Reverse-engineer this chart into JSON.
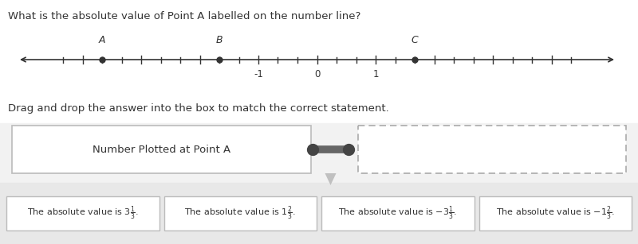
{
  "title_text": "What is the absolute value of Point A labelled on the number line?",
  "drag_text": "Drag and drop the answer into the box to match the correct statement.",
  "number_line": {
    "x_min": -4.5,
    "x_max": 4.5,
    "ticks_per_unit": 3,
    "labeled_ticks": [
      -1,
      0,
      1
    ],
    "points": [
      {
        "label": "A",
        "value": -3.667
      },
      {
        "label": "B",
        "value": -1.667
      },
      {
        "label": "C",
        "value": 1.667
      }
    ]
  },
  "left_box_text": "Number Plotted at Point A",
  "answer_boxes": [
    "The absolute value is $3\\frac{1}{3}$.",
    "The absolute value is $1\\frac{2}{3}$.",
    "The absolute value is $-3\\frac{1}{3}$.",
    "The absolute value is $-1\\frac{2}{3}$."
  ],
  "bg_top": "#ffffff",
  "bg_mid": "#f2f2f2",
  "bg_bot": "#e8e8e8",
  "white": "#ffffff",
  "box_edge": "#bbbbbb",
  "text_color": "#333333",
  "connector_color": "#666666",
  "line_color": "#333333"
}
